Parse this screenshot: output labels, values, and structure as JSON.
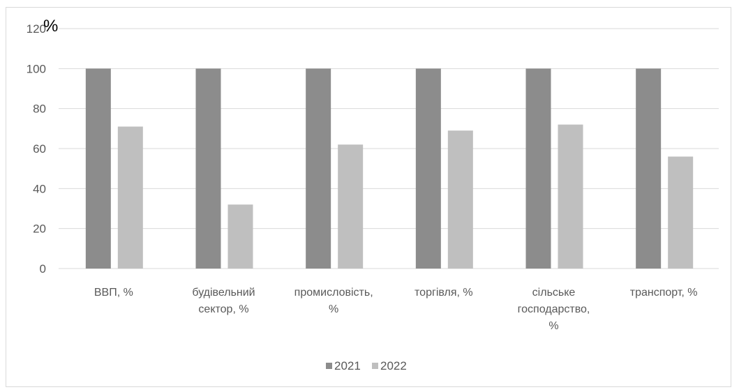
{
  "chart_data": {
    "type": "bar",
    "unit_label": "%",
    "categories": [
      [
        "ВВП, %"
      ],
      [
        "будівельний",
        "сектор, %"
      ],
      [
        "промисловість,",
        "%"
      ],
      [
        "торгівля, %"
      ],
      [
        "сільське",
        "господарство,",
        "%"
      ],
      [
        "транспорт, %"
      ]
    ],
    "series": [
      {
        "name": "2021",
        "values": [
          100,
          100,
          100,
          100,
          100,
          100
        ]
      },
      {
        "name": "2022",
        "values": [
          71,
          32,
          62,
          69,
          72,
          56
        ]
      }
    ],
    "ylim": [
      0,
      120
    ],
    "yticks": [
      0,
      20,
      40,
      60,
      80,
      100,
      120
    ],
    "grid": true,
    "legend_position": "bottom"
  },
  "colors": {
    "series_2021": "#8c8c8c",
    "series_2022": "#bfbfbf",
    "grid": "#d9d9d9",
    "text": "#595959"
  }
}
